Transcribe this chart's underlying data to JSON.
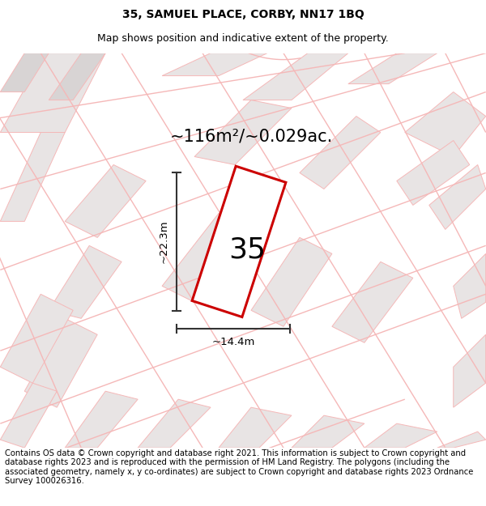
{
  "title": "35, SAMUEL PLACE, CORBY, NN17 1BQ",
  "subtitle": "Map shows position and indicative extent of the property.",
  "area_text": "~116m²/~0.029ac.",
  "property_number": "35",
  "dim_vertical": "~22.3m",
  "dim_horizontal": "~14.4m",
  "footer": "Contains OS data © Crown copyright and database right 2021. This information is subject to Crown copyright and database rights 2023 and is reproduced with the permission of HM Land Registry. The polygons (including the associated geometry, namely x, y co-ordinates) are subject to Crown copyright and database rights 2023 Ordnance Survey 100026316.",
  "bg_color": "#ffffff",
  "map_bg": "#ffffff",
  "road_color": "#f5b8b8",
  "block_color": "#e8e4e4",
  "plot_color": "#cc0000",
  "title_fontsize": 10,
  "subtitle_fontsize": 9,
  "area_fontsize": 15,
  "number_fontsize": 26,
  "dim_fontsize": 9.5,
  "footer_fontsize": 7.2
}
